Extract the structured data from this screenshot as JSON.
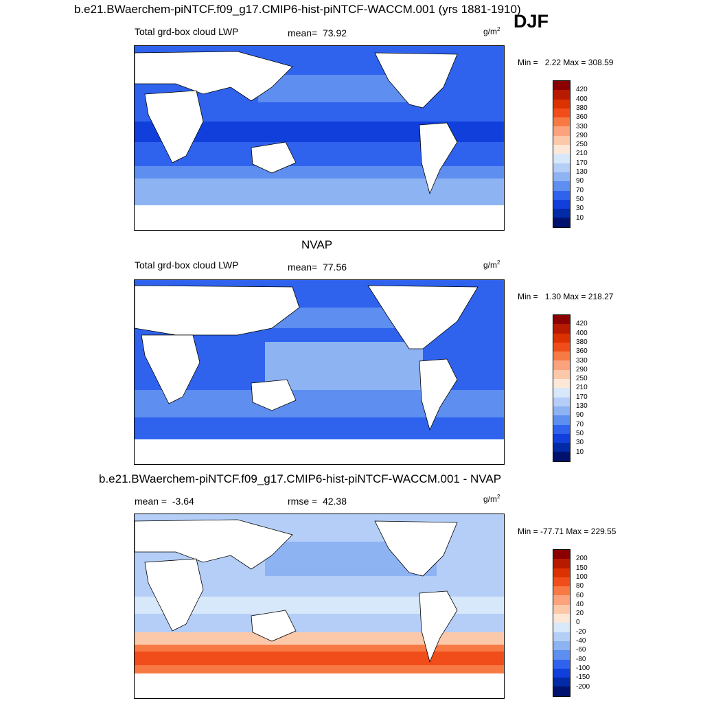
{
  "header": {
    "title": "b.e21.BWaerchem-piNTCF.f09_g17.CMIP6-hist-piNTCF-WACCM.001 (yrs 1881-1910)",
    "season": "DJF"
  },
  "chart_data": [
    {
      "type": "heatmap",
      "panel": "model",
      "variable_label": "Total grd-box cloud LWP",
      "mean_label": "mean=",
      "mean_value": "73.92",
      "units": "g/m",
      "units_exp": "2",
      "min_label": "Min =",
      "min_value": "2.22",
      "max_label": "Max =",
      "max_value": "308.59",
      "colorbar_levels": [
        "420",
        "400",
        "380",
        "360",
        "330",
        "290",
        "250",
        "210",
        "170",
        "130",
        "90",
        "70",
        "50",
        "30",
        "10"
      ],
      "colorbar_colors": [
        "#8b0000",
        "#b81a00",
        "#dc3100",
        "#f04d1a",
        "#f77a45",
        "#fba37c",
        "#fcc8aa",
        "#fde8d8",
        "#d8e8fb",
        "#b4cef7",
        "#8db3f3",
        "#5d8ef0",
        "#2f63ee",
        "#103fdc",
        "#002aa6",
        "#00126e"
      ]
    },
    {
      "type": "heatmap",
      "panel": "obs",
      "panel_title": "NVAP",
      "variable_label": "Total grd-box cloud LWP",
      "mean_label": "mean=",
      "mean_value": "77.56",
      "units": "g/m",
      "units_exp": "2",
      "min_label": "Min =",
      "min_value": "1.30",
      "max_label": "Max =",
      "max_value": "218.27",
      "colorbar_levels": [
        "420",
        "400",
        "380",
        "360",
        "330",
        "290",
        "250",
        "210",
        "170",
        "130",
        "90",
        "70",
        "50",
        "30",
        "10"
      ],
      "colorbar_colors": [
        "#8b0000",
        "#b81a00",
        "#dc3100",
        "#f04d1a",
        "#f77a45",
        "#fba37c",
        "#fcc8aa",
        "#fde8d8",
        "#d8e8fb",
        "#b4cef7",
        "#8db3f3",
        "#5d8ef0",
        "#2f63ee",
        "#103fdc",
        "#002aa6",
        "#00126e"
      ]
    },
    {
      "type": "heatmap",
      "panel": "difference",
      "panel_title": "b.e21.BWaerchem-piNTCF.f09_g17.CMIP6-hist-piNTCF-WACCM.001 - NVAP",
      "mean_label": "mean =",
      "mean_value": "-3.64",
      "rmse_label": "rmse =",
      "rmse_value": "42.38",
      "units": "g/m",
      "units_exp": "2",
      "min_label": "Min =",
      "min_value": "-77.71",
      "max_label": "Max =",
      "max_value": "229.55",
      "colorbar_levels": [
        "200",
        "150",
        "100",
        "80",
        "60",
        "40",
        "20",
        "0",
        "-20",
        "-40",
        "-60",
        "-80",
        "-100",
        "-150",
        "-200"
      ],
      "colorbar_colors": [
        "#8b0000",
        "#b81a00",
        "#dc3100",
        "#f04d1a",
        "#f77a45",
        "#fba37c",
        "#fcc8aa",
        "#fde8d8",
        "#d8e8fb",
        "#b4cef7",
        "#8db3f3",
        "#5d8ef0",
        "#2f63ee",
        "#103fdc",
        "#002aa6",
        "#00126e"
      ]
    }
  ]
}
